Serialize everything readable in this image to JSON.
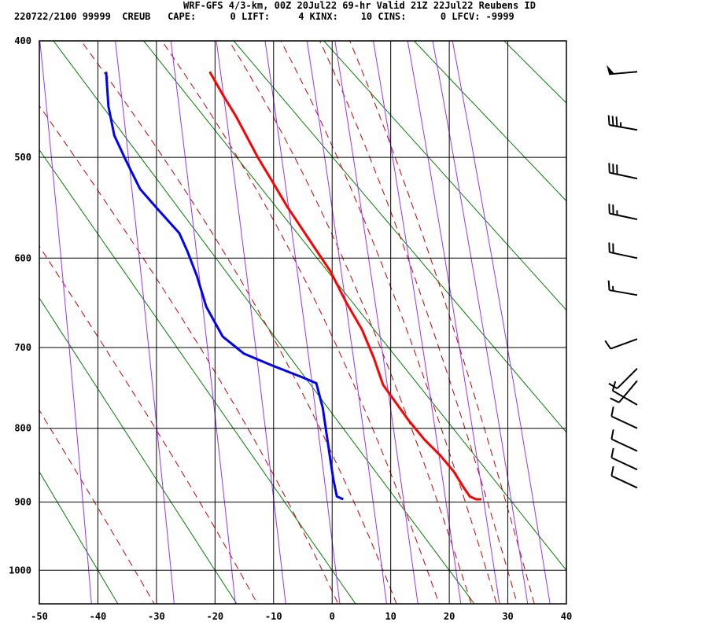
{
  "header": {
    "title": "WRF-GFS 4/3-km, 00Z 20Jul22 69-hr Valid 21Z 22Jul22 Reubens ID",
    "stats": "220722/2100 99999  CREUB   CAPE:      0 LIFT:     4 KINX:    10 CINS:      0 LFCV: -9999"
  },
  "chart_data": {
    "type": "line",
    "subtype": "skew-t sounding",
    "x_ticks": [
      "-50",
      "-40",
      "-30",
      "-20",
      "-10",
      "0",
      "10",
      "20",
      "30",
      "40"
    ],
    "y_ticks": [
      "400",
      "500",
      "600",
      "700",
      "800",
      "900",
      "1000"
    ],
    "xlim": [
      -50,
      40
    ],
    "ylim": [
      1050,
      400
    ],
    "y_scale": "pressure (p^0.286)",
    "grid": true,
    "colors": {
      "temperature": "#ff0000",
      "dewpoint": "#0000ff",
      "dry_adiabat": "#008000",
      "moist_adiabat": "#cc0000",
      "mixing_ratio": "#9933ff",
      "grid": "#000000"
    },
    "dry_adiabats_theta_K": [
      213.15,
      233.15,
      253.15,
      273.15,
      293.15,
      313.15,
      333.15,
      353.15,
      373.15,
      393.15,
      413.15,
      433.15
    ],
    "moist_adiabats_thetae_K": [
      220,
      240,
      260,
      280,
      300,
      320,
      340,
      360,
      380,
      400
    ],
    "mixing_ratio_gkg": [
      0.1,
      0.4,
      1,
      2,
      4,
      7,
      10,
      16,
      24,
      32,
      40
    ],
    "series": [
      {
        "key": "temperature",
        "points": [
          [
            425,
            -20.9
          ],
          [
            444,
            -18.7
          ],
          [
            463,
            -16.4
          ],
          [
            500,
            -12.7
          ],
          [
            521,
            -10.4
          ],
          [
            547,
            -7.7
          ],
          [
            589,
            -3.0
          ],
          [
            614,
            -0.3
          ],
          [
            648,
            2.4
          ],
          [
            679,
            5.1
          ],
          [
            712,
            7.1
          ],
          [
            745,
            8.7
          ],
          [
            790,
            13.1
          ],
          [
            815,
            15.8
          ],
          [
            836,
            18.5
          ],
          [
            858,
            20.8
          ],
          [
            880,
            22.5
          ],
          [
            892,
            23.5
          ],
          [
            896,
            24.6
          ],
          [
            896,
            25.5
          ]
        ]
      },
      {
        "key": "dewpoint",
        "points": [
          [
            425,
            -38.6
          ],
          [
            454,
            -38.2
          ],
          [
            480,
            -37.2
          ],
          [
            503,
            -35.2
          ],
          [
            530,
            -32.8
          ],
          [
            549,
            -29.9
          ],
          [
            574,
            -26.1
          ],
          [
            593,
            -24.7
          ],
          [
            619,
            -23.1
          ],
          [
            653,
            -21.5
          ],
          [
            687,
            -18.7
          ],
          [
            707,
            -15.1
          ],
          [
            721,
            -10.4
          ],
          [
            736,
            -5.0
          ],
          [
            743,
            -2.7
          ],
          [
            774,
            -1.6
          ],
          [
            805,
            -1.0
          ],
          [
            842,
            -0.3
          ],
          [
            868,
            0.2
          ],
          [
            892,
            0.8
          ],
          [
            896,
            1.9
          ]
        ]
      }
    ],
    "wind_barbs": [
      {
        "p": 425,
        "dir": 265,
        "speed": 50
      },
      {
        "p": 475,
        "dir": 280,
        "speed": 35
      },
      {
        "p": 520,
        "dir": 282,
        "speed": 30
      },
      {
        "p": 560,
        "dir": 282,
        "speed": 25
      },
      {
        "p": 600,
        "dir": 282,
        "speed": 20
      },
      {
        "p": 640,
        "dir": 280,
        "speed": 15
      },
      {
        "p": 690,
        "dir": 250,
        "speed": 10
      },
      {
        "p": 725,
        "dir": 225,
        "speed": 10
      },
      {
        "p": 740,
        "dir": 220,
        "speed": 10
      },
      {
        "p": 770,
        "dir": 300,
        "speed": 10
      },
      {
        "p": 800,
        "dir": 295,
        "speed": 10
      },
      {
        "p": 830,
        "dir": 295,
        "speed": 10
      },
      {
        "p": 855,
        "dir": 295,
        "speed": 10
      },
      {
        "p": 880,
        "dir": 295,
        "speed": 10
      }
    ]
  }
}
